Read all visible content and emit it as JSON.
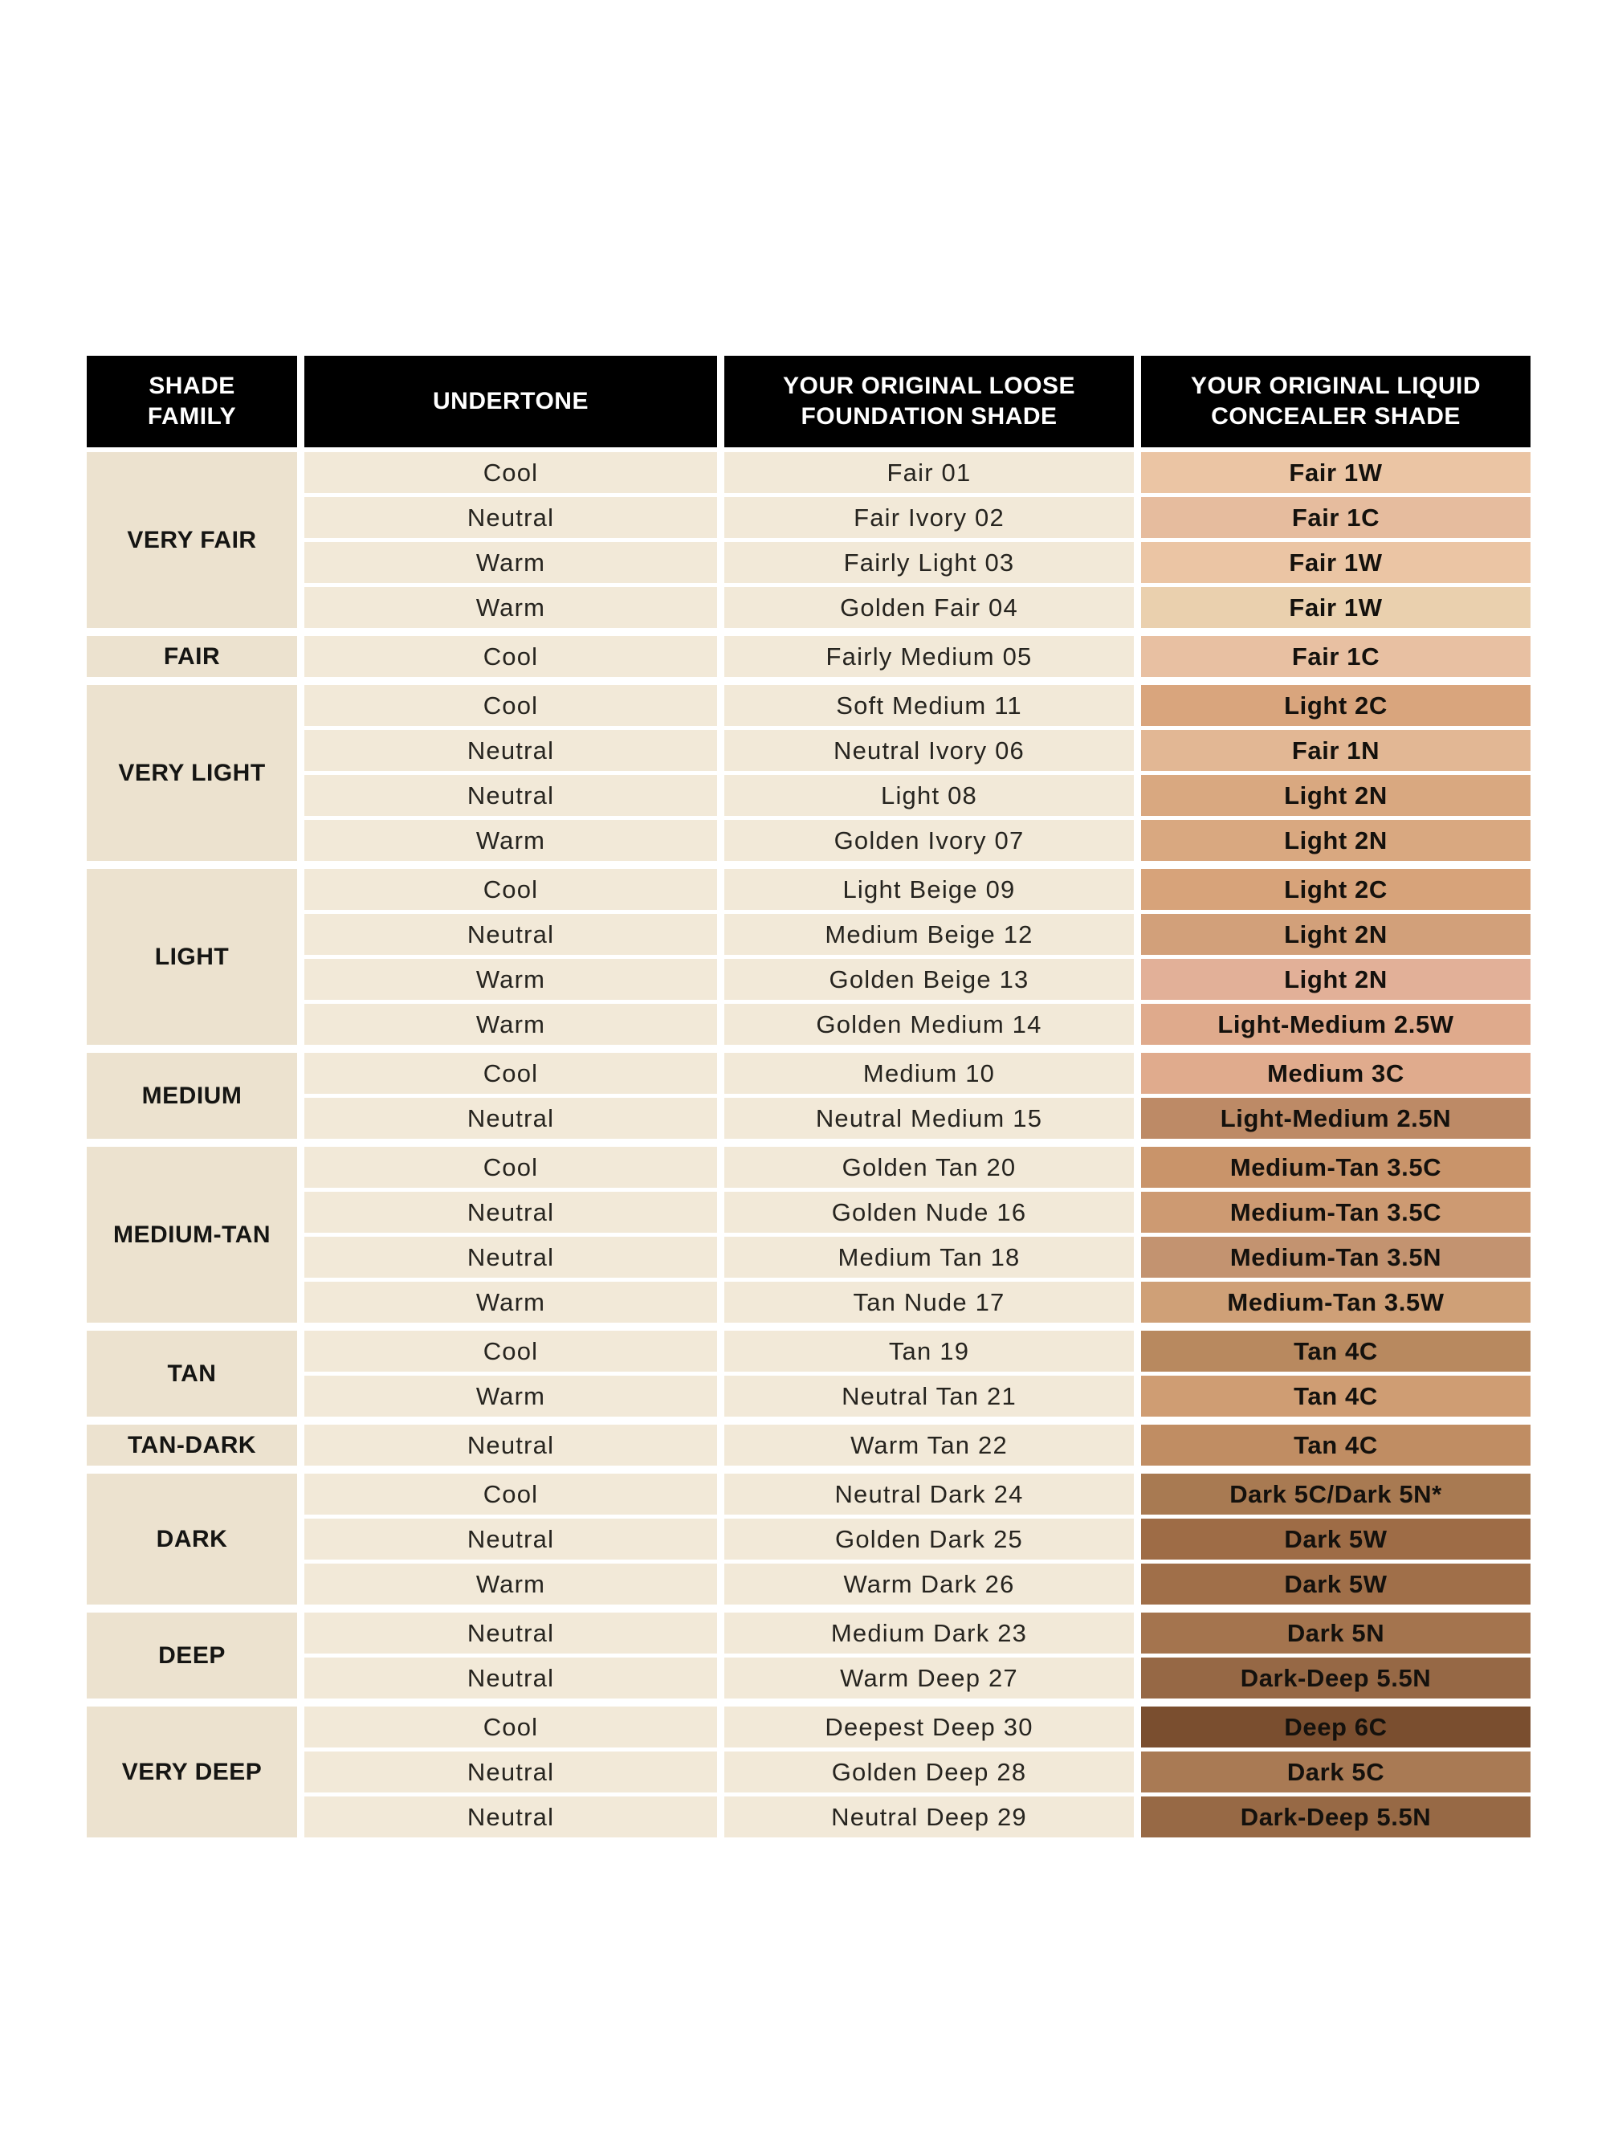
{
  "colors": {
    "page_bg": "#ffffff",
    "header_bg": "#000000",
    "header_text": "#ffffff",
    "family_cell_bg": "#ece2cf",
    "data_cell_bg": "#f2e9d8",
    "data_text": "#26241f",
    "grid_gap": "#ffffff"
  },
  "chart_data": {
    "type": "table",
    "columns": [
      "SHADE FAMILY",
      "UNDERTONE",
      "YOUR ORIGINAL LOOSE FOUNDATION SHADE",
      "YOUR ORIGINAL LIQUID CONCEALER SHADE"
    ],
    "groups": [
      {
        "family": "VERY FAIR",
        "rows": [
          {
            "undertone": "Cool",
            "foundation": "Fair 01",
            "concealer": "Fair 1W",
            "swatch": "#ebc5a4"
          },
          {
            "undertone": "Neutral",
            "foundation": "Fair Ivory 02",
            "concealer": "Fair 1C",
            "swatch": "#e6bc9e"
          },
          {
            "undertone": "Warm",
            "foundation": "Fairly Light 03",
            "concealer": "Fair 1W",
            "swatch": "#ebc5a4"
          },
          {
            "undertone": "Warm",
            "foundation": "Golden Fair 04",
            "concealer": "Fair 1W",
            "swatch": "#ead0ae"
          }
        ]
      },
      {
        "family": "FAIR",
        "rows": [
          {
            "undertone": "Cool",
            "foundation": "Fairly Medium 05",
            "concealer": "Fair 1C",
            "swatch": "#e8c0a2"
          }
        ]
      },
      {
        "family": "VERY LIGHT",
        "rows": [
          {
            "undertone": "Cool",
            "foundation": "Soft Medium 11",
            "concealer": "Light 2C",
            "swatch": "#d9a57d"
          },
          {
            "undertone": "Neutral",
            "foundation": "Neutral Ivory 06",
            "concealer": "Fair 1N",
            "swatch": "#e2b794"
          },
          {
            "undertone": "Neutral",
            "foundation": "Light 08",
            "concealer": "Light 2N",
            "swatch": "#d9a880"
          },
          {
            "undertone": "Warm",
            "foundation": "Golden Ivory 07",
            "concealer": "Light 2N",
            "swatch": "#d9a880"
          }
        ]
      },
      {
        "family": "LIGHT",
        "rows": [
          {
            "undertone": "Cool",
            "foundation": "Light Beige 09",
            "concealer": "Light 2C",
            "swatch": "#d7a37a"
          },
          {
            "undertone": "Neutral",
            "foundation": "Medium Beige 12",
            "concealer": "Light 2N",
            "swatch": "#d2a07a"
          },
          {
            "undertone": "Warm",
            "foundation": "Golden Beige 13",
            "concealer": "Light 2N",
            "swatch": "#e2b098"
          },
          {
            "undertone": "Warm",
            "foundation": "Golden Medium 14",
            "concealer": "Light-Medium 2.5W",
            "swatch": "#dfaa8c"
          }
        ]
      },
      {
        "family": "MEDIUM",
        "rows": [
          {
            "undertone": "Cool",
            "foundation": "Medium 10",
            "concealer": "Medium 3C",
            "swatch": "#e0ab8d"
          },
          {
            "undertone": "Neutral",
            "foundation": "Neutral Medium 15",
            "concealer": "Light-Medium 2.5N",
            "swatch": "#bd8a66"
          }
        ]
      },
      {
        "family": "MEDIUM-TAN",
        "rows": [
          {
            "undertone": "Cool",
            "foundation": "Golden Tan 20",
            "concealer": "Medium-Tan 3.5C",
            "swatch": "#c9946a"
          },
          {
            "undertone": "Neutral",
            "foundation": "Golden Nude 16",
            "concealer": "Medium-Tan 3.5C",
            "swatch": "#cd9a72"
          },
          {
            "undertone": "Neutral",
            "foundation": "Medium Tan 18",
            "concealer": "Medium-Tan 3.5N",
            "swatch": "#c39370"
          },
          {
            "undertone": "Warm",
            "foundation": "Tan Nude 17",
            "concealer": "Medium-Tan 3.5W",
            "swatch": "#cfa077"
          }
        ]
      },
      {
        "family": "TAN",
        "rows": [
          {
            "undertone": "Cool",
            "foundation": "Tan 19",
            "concealer": "Tan 4C",
            "swatch": "#b8895f"
          },
          {
            "undertone": "Warm",
            "foundation": "Neutral Tan 21",
            "concealer": "Tan 4C",
            "swatch": "#cf9d73"
          }
        ]
      },
      {
        "family": "TAN-DARK",
        "rows": [
          {
            "undertone": "Neutral",
            "foundation": "Warm Tan 22",
            "concealer": "Tan 4C",
            "swatch": "#c08d63"
          }
        ]
      },
      {
        "family": "DARK",
        "rows": [
          {
            "undertone": "Cool",
            "foundation": "Neutral Dark 24",
            "concealer": "Dark 5C/Dark 5N*",
            "swatch": "#a87a52"
          },
          {
            "undertone": "Neutral",
            "foundation": "Golden Dark 25",
            "concealer": "Dark 5W",
            "swatch": "#9e6c46"
          },
          {
            "undertone": "Warm",
            "foundation": "Warm Dark 26",
            "concealer": "Dark 5W",
            "swatch": "#a06f49"
          }
        ]
      },
      {
        "family": "DEEP",
        "rows": [
          {
            "undertone": "Neutral",
            "foundation": "Medium Dark 23",
            "concealer": "Dark 5N",
            "swatch": "#a4744e"
          },
          {
            "undertone": "Neutral",
            "foundation": "Warm Deep 27",
            "concealer": "Dark-Deep 5.5N",
            "swatch": "#966845"
          }
        ]
      },
      {
        "family": "VERY DEEP",
        "rows": [
          {
            "undertone": "Cool",
            "foundation": "Deepest Deep 30",
            "concealer": "Deep 6C",
            "swatch": "#7a4e2f"
          },
          {
            "undertone": "Neutral",
            "foundation": "Golden Deep 28",
            "concealer": "Dark 5C",
            "swatch": "#a97a54"
          },
          {
            "undertone": "Neutral",
            "foundation": "Neutral Deep 29",
            "concealer": "Dark-Deep 5.5N",
            "swatch": "#976945"
          }
        ]
      }
    ]
  }
}
